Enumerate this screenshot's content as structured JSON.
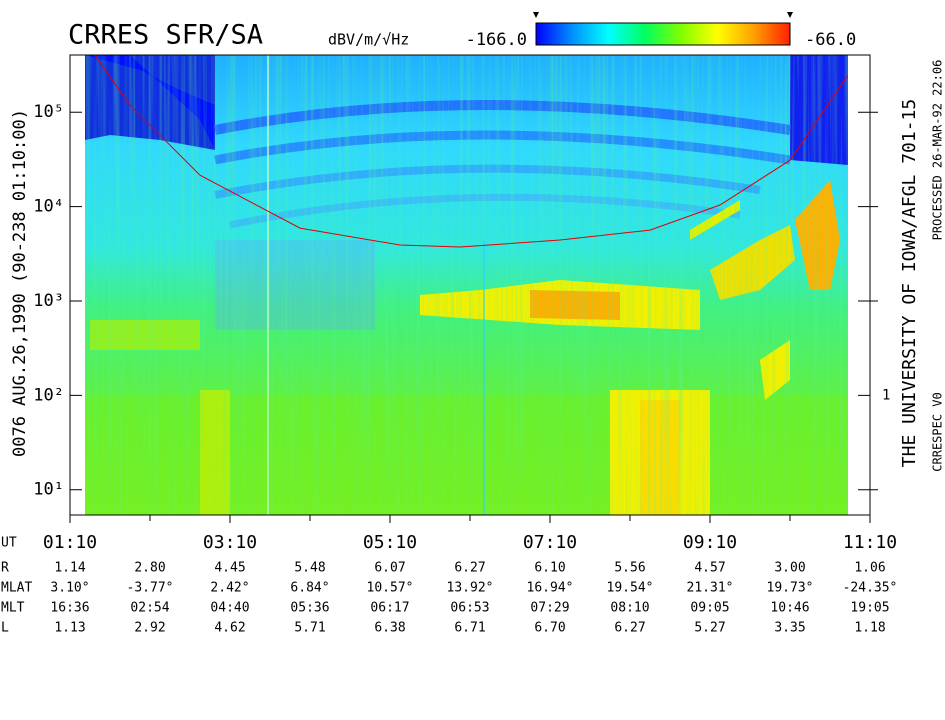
{
  "title": "CRRES SFR/SA",
  "colorbar": {
    "unit": "dBV/m/√Hz",
    "min": {
      "value": -166,
      "label": "-166.0"
    },
    "max": {
      "value": -66,
      "label": "-66.0"
    },
    "colors": [
      "#0000ff",
      "#0090ff",
      "#00ffff",
      "#00ff60",
      "#80ff00",
      "#ffff00",
      "#ffa000",
      "#ff2000"
    ]
  },
  "left_label": "0076   AUG.26,1990   (90-238 01:10:00)",
  "right_labels": [
    "THE UNIVERSITY OF IOWA/AFGL 701-15",
    "PROCESSED 26-MAR-92  22:06",
    "CRRESPEC V0"
  ],
  "chart_data": {
    "type": "spectrogram",
    "yscale": "log",
    "ylim": [
      5.4,
      404000
    ],
    "yticks": [
      {
        "value": 10,
        "label": "10¹"
      },
      {
        "value": 100,
        "label": "10²"
      },
      {
        "value": 1000,
        "label": "10³"
      },
      {
        "value": 10000,
        "label": "10⁴"
      },
      {
        "value": 100000,
        "label": "10⁵"
      }
    ],
    "y2lim": [
      0.054,
      4040
    ],
    "y2ticks": [
      1
    ],
    "y2minor": [
      0.1,
      10,
      100,
      1000
    ],
    "xlim": [
      70,
      670
    ],
    "xticks": [
      {
        "value": 70,
        "label": "01:10"
      },
      {
        "value": 190,
        "label": "03:10"
      },
      {
        "value": 310,
        "label": "05:10"
      },
      {
        "value": 430,
        "label": "07:10"
      },
      {
        "value": 550,
        "label": "09:10"
      },
      {
        "value": 670,
        "label": "11:10"
      }
    ],
    "xminor": [
      130,
      250,
      370,
      490,
      610
    ],
    "line": {
      "color": "#e00000",
      "x": [
        88.75,
        115,
        167.5,
        242.5,
        317.5,
        362.5,
        437.5,
        505,
        557.5,
        610,
        653.5
      ],
      "y": [
        401000,
        118600,
        21500,
        5920,
        3920,
        3730,
        4430,
        5640,
        10400,
        31000,
        246000
      ]
    }
  },
  "ephemeris": {
    "labels": [
      "UT",
      "R",
      "MLAT",
      "MLT",
      "L"
    ],
    "rows": [
      [
        "1.14",
        "2.80",
        "4.45",
        "5.48",
        "6.07",
        "6.27",
        "6.10",
        "5.56",
        "4.57",
        "3.00",
        "1.06"
      ],
      [
        "3.10°",
        "-3.77°",
        "2.42°",
        "6.84°",
        "10.57°",
        "13.92°",
        "16.94°",
        "19.54°",
        "21.31°",
        "19.73°",
        "-24.35°"
      ],
      [
        "16:36",
        "02:54",
        "04:40",
        "05:36",
        "06:17",
        "06:53",
        "07:29",
        "08:10",
        "09:05",
        "10:46",
        "19:05"
      ],
      [
        "1.13",
        "2.92",
        "4.62",
        "5.71",
        "6.38",
        "6.71",
        "6.70",
        "6.27",
        "5.27",
        "3.35",
        "1.18"
      ]
    ]
  }
}
